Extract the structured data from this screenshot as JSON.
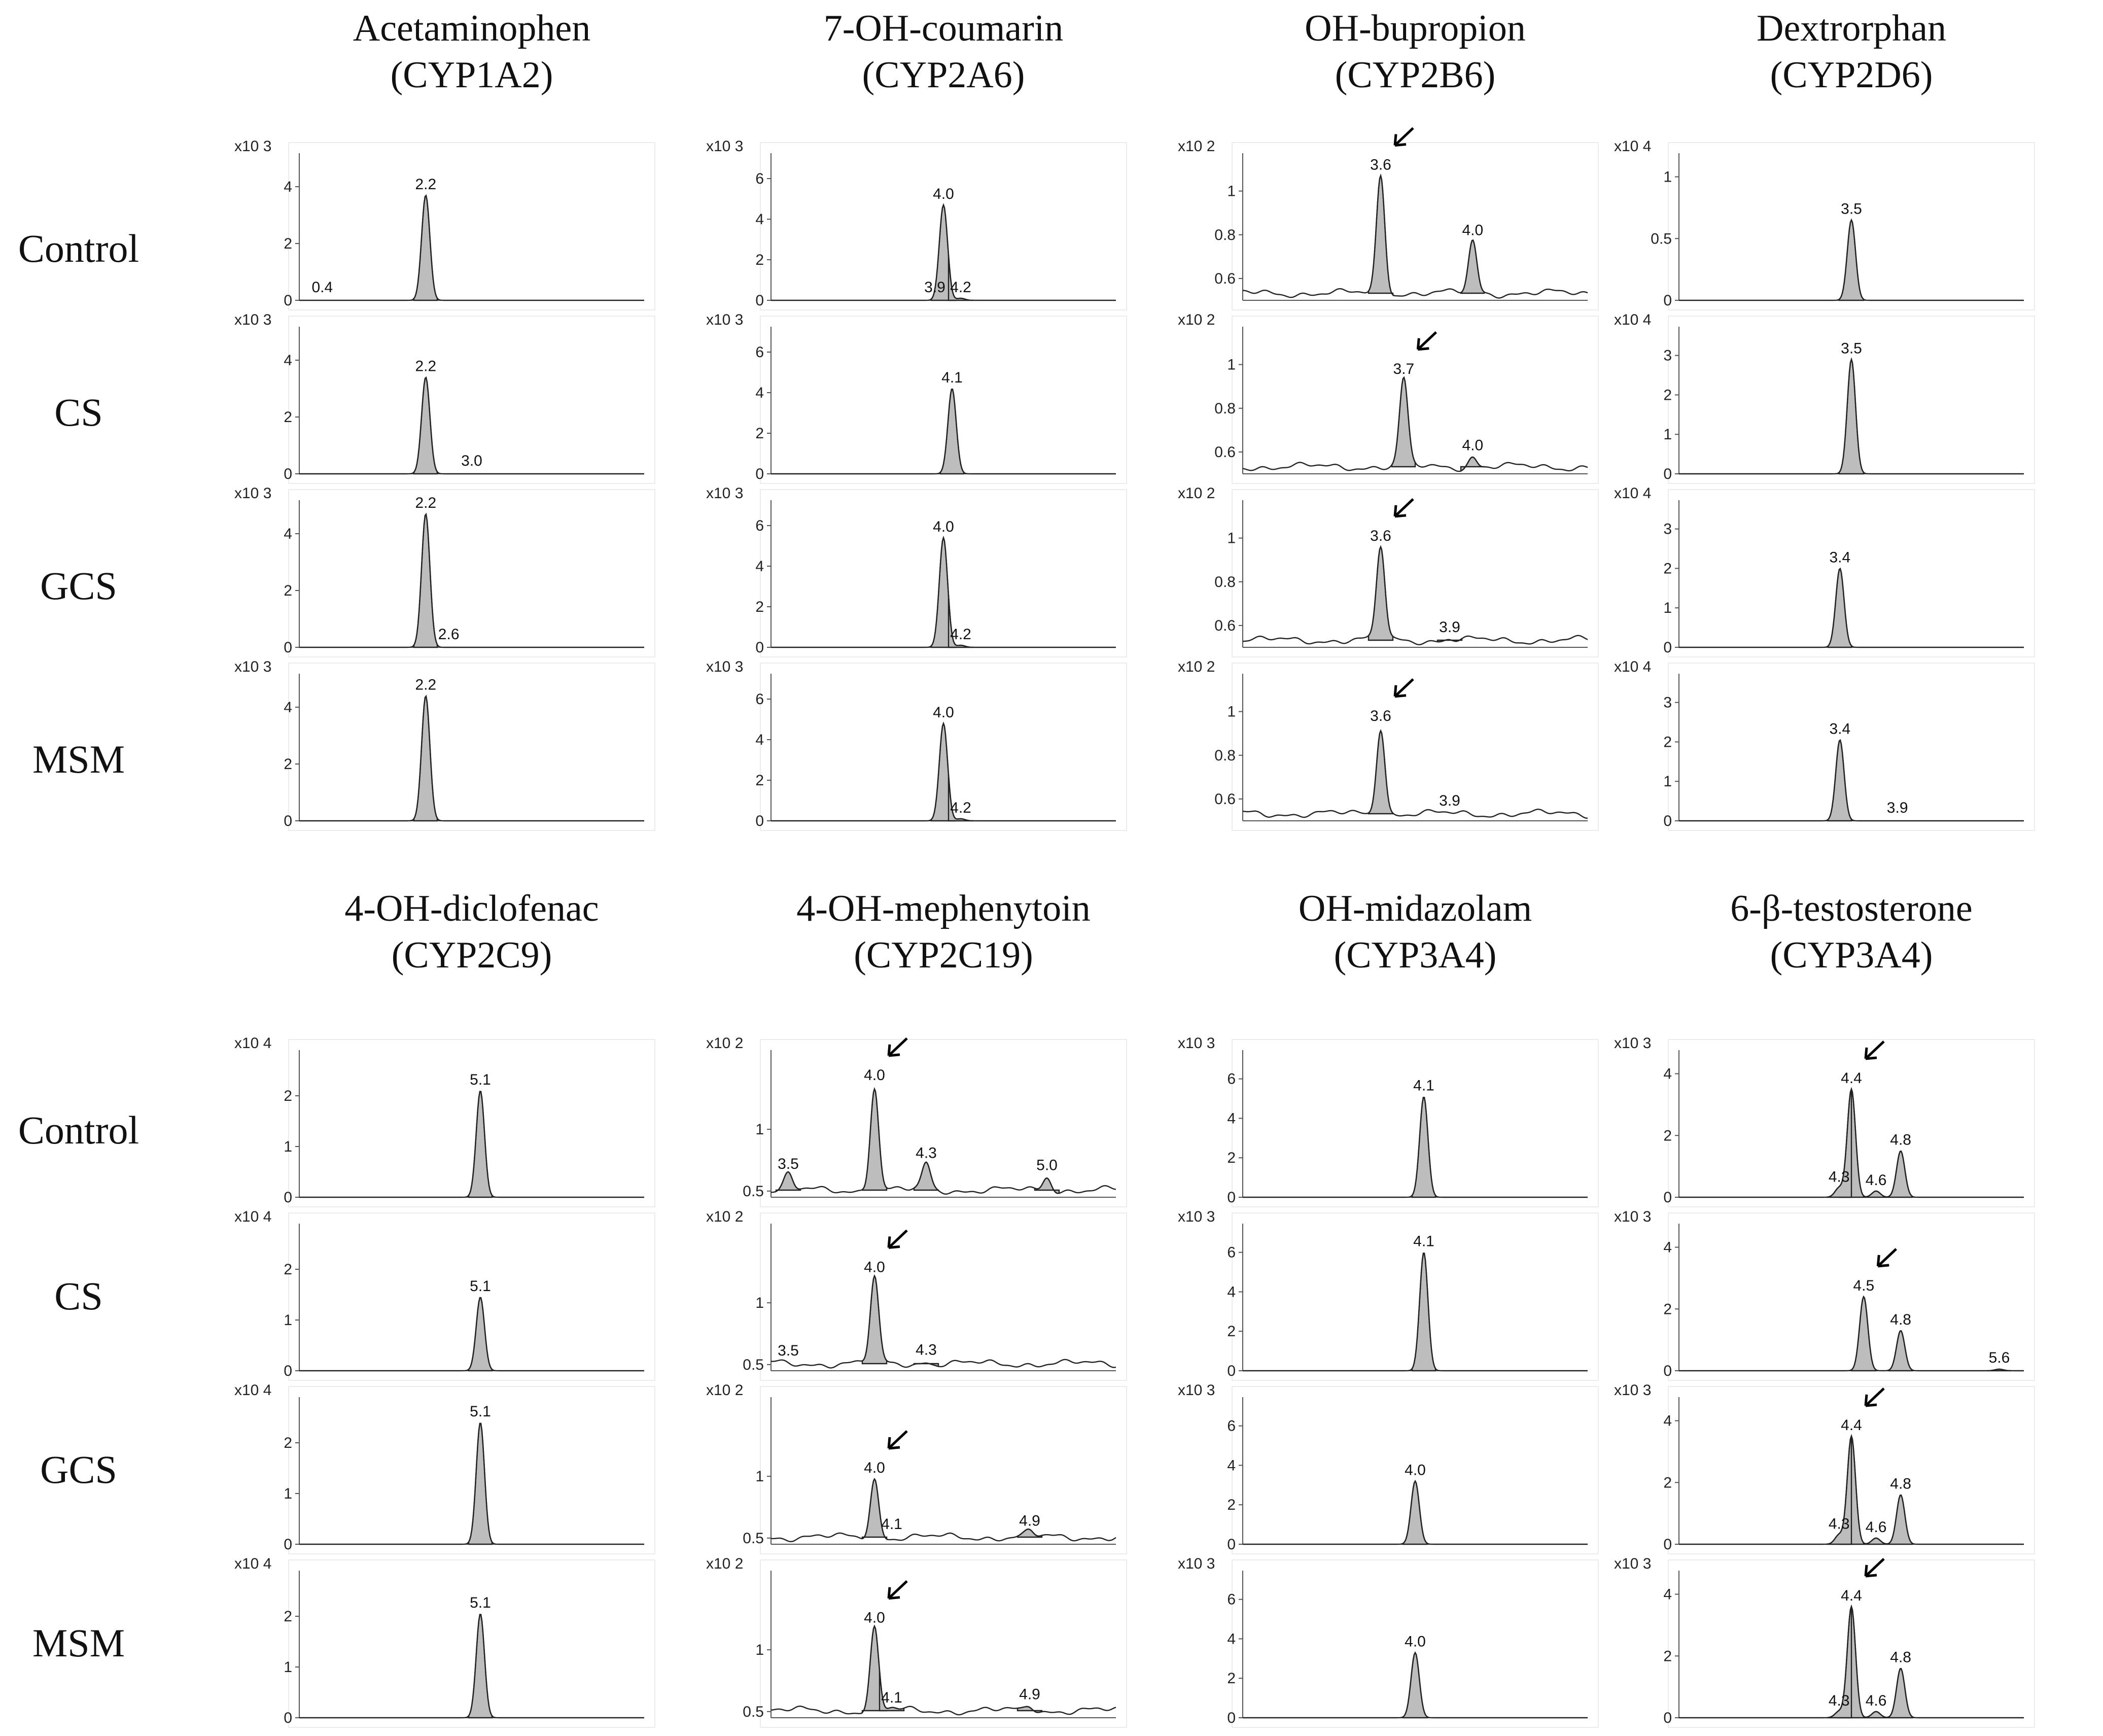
{
  "figure": {
    "row_labels": [
      "Control",
      "CS",
      "GCS",
      "MSM"
    ],
    "colors": {
      "peak_fill": "#bdbdbd",
      "line": "#222222",
      "arrow": "#000000"
    }
  },
  "chart_data": [
    {
      "type": "line",
      "metabolite": "Acetaminophen",
      "enzyme": "(CYP1A2)",
      "scale": "x10 3",
      "ylim": [
        0,
        5
      ],
      "yticks": [
        "0",
        "2",
        "4"
      ],
      "ytick_values": [
        0,
        2,
        4
      ],
      "xlim": [
        0,
        6
      ],
      "noise": false,
      "rows": [
        {
          "group": "Control",
          "peaks": [
            {
              "rt": 2.2,
              "h": 3.7,
              "label": "2.2"
            },
            {
              "rt": 0.4,
              "h": 0.05,
              "label": "0.4"
            }
          ]
        },
        {
          "group": "CS",
          "peaks": [
            {
              "rt": 2.2,
              "h": 3.4,
              "label": "2.2"
            },
            {
              "rt": 3.0,
              "h": 0.05,
              "label": "3.0"
            }
          ]
        },
        {
          "group": "GCS",
          "peaks": [
            {
              "rt": 2.2,
              "h": 4.7,
              "label": "2.2"
            },
            {
              "rt": 2.6,
              "h": 0.05,
              "label": "2.6"
            }
          ]
        },
        {
          "group": "MSM",
          "peaks": [
            {
              "rt": 2.2,
              "h": 4.4,
              "label": "2.2"
            }
          ]
        }
      ]
    },
    {
      "type": "line",
      "metabolite": "7-OH-coumarin",
      "enzyme": "(CYP2A6)",
      "scale": "x10 3",
      "ylim": [
        0,
        7
      ],
      "yticks": [
        "0",
        "2",
        "4",
        "6"
      ],
      "ytick_values": [
        0,
        2,
        4,
        6
      ],
      "xlim": [
        2,
        6
      ],
      "noise": false,
      "rows": [
        {
          "group": "Control",
          "peaks": [
            {
              "rt": 4.0,
              "h": 4.7,
              "label": "4.0"
            },
            {
              "rt": 3.9,
              "h": 0.05,
              "label": "3.9"
            },
            {
              "rt": 4.2,
              "h": 0.1,
              "label": "4.2"
            }
          ]
        },
        {
          "group": "CS",
          "peaks": [
            {
              "rt": 4.1,
              "h": 4.2,
              "label": "4.1"
            }
          ]
        },
        {
          "group": "GCS",
          "peaks": [
            {
              "rt": 4.0,
              "h": 5.4,
              "label": "4.0"
            },
            {
              "rt": 4.2,
              "h": 0.1,
              "label": "4.2"
            }
          ]
        },
        {
          "group": "MSM",
          "peaks": [
            {
              "rt": 4.0,
              "h": 4.8,
              "label": "4.0"
            },
            {
              "rt": 4.2,
              "h": 0.1,
              "label": "4.2"
            }
          ]
        }
      ]
    },
    {
      "type": "line",
      "metabolite": "OH-bupropion",
      "enzyme": "(CYP2B6)",
      "scale": "x10 2",
      "ylim": [
        0.5,
        1.15
      ],
      "yticks": [
        "0.6",
        "0.8",
        "1"
      ],
      "ytick_values": [
        0.6,
        0.8,
        1.0
      ],
      "xlim": [
        3.0,
        4.5
      ],
      "noise": true,
      "rows": [
        {
          "group": "Control",
          "arrow": true,
          "peaks": [
            {
              "rt": 3.6,
              "h": 1.07,
              "label": "3.6"
            },
            {
              "rt": 4.0,
              "h": 0.77,
              "label": "4.0"
            }
          ]
        },
        {
          "group": "CS",
          "arrow": true,
          "peaks": [
            {
              "rt": 3.7,
              "h": 0.93,
              "label": "3.7"
            },
            {
              "rt": 4.0,
              "h": 0.58,
              "label": "4.0"
            }
          ]
        },
        {
          "group": "GCS",
          "arrow": true,
          "peaks": [
            {
              "rt": 3.6,
              "h": 0.96,
              "label": "3.6"
            },
            {
              "rt": 3.9,
              "h": 0.54,
              "label": "3.9"
            }
          ]
        },
        {
          "group": "MSM",
          "arrow": true,
          "peaks": [
            {
              "rt": 3.6,
              "h": 0.93,
              "label": "3.6"
            },
            {
              "rt": 3.9,
              "h": 0.51,
              "label": "3.9"
            }
          ]
        }
      ]
    },
    {
      "type": "line",
      "metabolite": "Dextrorphan",
      "enzyme": "(CYP2D6)",
      "scale": "x10 4",
      "ylim": [
        0,
        1.15
      ],
      "yticks": [
        "0",
        "0.5",
        "1"
      ],
      "ytick_values": [
        0,
        0.5,
        1.0
      ],
      "xlim": [
        2,
        5
      ],
      "noise": false,
      "rows": [
        {
          "group": "Control",
          "peaks": [
            {
              "rt": 3.5,
              "h": 0.65,
              "label": "3.5"
            }
          ]
        },
        {
          "group": "CS",
          "peaks": [
            {
              "rt": 3.5,
              "h": 2.9,
              "label": "3.5"
            }
          ]
        },
        {
          "group": "GCS",
          "peaks": [
            {
              "rt": 3.4,
              "h": 2.0,
              "label": "3.4"
            }
          ]
        },
        {
          "group": "MSM",
          "peaks": [
            {
              "rt": 3.4,
              "h": 2.05,
              "label": "3.4"
            },
            {
              "rt": 3.9,
              "h": 0.02,
              "label": "3.9"
            }
          ]
        }
      ],
      "row_ylim": [
        [
          0,
          1.15
        ],
        [
          0,
          3.6
        ],
        [
          0,
          3.6
        ],
        [
          0,
          3.6
        ]
      ],
      "row_yticks": [
        [
          "0",
          "0.5",
          "1"
        ],
        [
          "0",
          "1",
          "2",
          "3"
        ],
        [
          "0",
          "1",
          "2",
          "3"
        ],
        [
          "0",
          "1",
          "2",
          "3"
        ]
      ],
      "row_ytick_values": [
        [
          0,
          0.5,
          1.0
        ],
        [
          0,
          1,
          2,
          3
        ],
        [
          0,
          1,
          2,
          3
        ],
        [
          0,
          1,
          2,
          3
        ]
      ]
    },
    {
      "type": "line",
      "metabolite": "4-OH-diclofenac",
      "enzyme": "(CYP2C9)",
      "scale": "x10 4",
      "ylim": [
        0,
        2.8
      ],
      "yticks": [
        "0",
        "1",
        "2"
      ],
      "ytick_values": [
        0,
        1,
        2
      ],
      "xlim": [
        3,
        7
      ],
      "noise": false,
      "rows": [
        {
          "group": "Control",
          "peaks": [
            {
              "rt": 5.1,
              "h": 2.1,
              "label": "5.1"
            }
          ]
        },
        {
          "group": "CS",
          "peaks": [
            {
              "rt": 5.1,
              "h": 1.45,
              "label": "5.1"
            }
          ]
        },
        {
          "group": "GCS",
          "peaks": [
            {
              "rt": 5.1,
              "h": 2.4,
              "label": "5.1"
            }
          ]
        },
        {
          "group": "MSM",
          "peaks": [
            {
              "rt": 5.1,
              "h": 2.05,
              "label": "5.1"
            }
          ]
        }
      ]
    },
    {
      "type": "line",
      "metabolite": "4-OH-mephenytoin",
      "enzyme": "(CYP2C19)",
      "scale": "x10 2",
      "ylim": [
        0.45,
        1.6
      ],
      "yticks": [
        "0.5",
        "1"
      ],
      "ytick_values": [
        0.5,
        1.0
      ],
      "xlim": [
        3.4,
        5.4
      ],
      "noise": true,
      "rows": [
        {
          "group": "Control",
          "arrow": true,
          "peaks": [
            {
              "rt": 4.0,
              "h": 1.35,
              "label": "4.0"
            },
            {
              "rt": 3.5,
              "h": 0.63,
              "label": "3.5"
            },
            {
              "rt": 4.3,
              "h": 0.72,
              "label": "4.3"
            },
            {
              "rt": 5.0,
              "h": 0.62,
              "label": "5.0"
            }
          ]
        },
        {
          "group": "CS",
          "arrow": true,
          "peaks": [
            {
              "rt": 4.0,
              "h": 1.2,
              "label": "4.0"
            },
            {
              "rt": 3.5,
              "h": 0.5,
              "label": "3.5"
            },
            {
              "rt": 4.3,
              "h": 0.53,
              "label": "4.3"
            }
          ]
        },
        {
          "group": "GCS",
          "arrow": true,
          "peaks": [
            {
              "rt": 4.0,
              "h": 0.98,
              "label": "4.0"
            },
            {
              "rt": 4.1,
              "h": 0.49,
              "label": "4.1"
            },
            {
              "rt": 4.9,
              "h": 0.55,
              "label": "4.9"
            }
          ]
        },
        {
          "group": "MSM",
          "arrow": true,
          "peaks": [
            {
              "rt": 4.0,
              "h": 1.17,
              "label": "4.0"
            },
            {
              "rt": 4.1,
              "h": 0.52,
              "label": "4.1"
            },
            {
              "rt": 4.9,
              "h": 0.55,
              "label": "4.9"
            }
          ]
        }
      ]
    },
    {
      "type": "line",
      "metabolite": "OH-midazolam",
      "enzyme": "(CYP3A4)",
      "scale": "x10 3",
      "ylim": [
        0,
        7.2
      ],
      "yticks": [
        "0",
        "2",
        "4",
        "6"
      ],
      "ytick_values": [
        0,
        2,
        4,
        6
      ],
      "xlim": [
        2,
        6
      ],
      "noise": false,
      "rows": [
        {
          "group": "Control",
          "peaks": [
            {
              "rt": 4.1,
              "h": 5.1,
              "label": "4.1"
            }
          ]
        },
        {
          "group": "CS",
          "peaks": [
            {
              "rt": 4.1,
              "h": 6.0,
              "label": "4.1"
            }
          ]
        },
        {
          "group": "GCS",
          "peaks": [
            {
              "rt": 4.0,
              "h": 3.2,
              "label": "4.0"
            }
          ]
        },
        {
          "group": "MSM",
          "peaks": [
            {
              "rt": 4.0,
              "h": 3.3,
              "label": "4.0"
            }
          ]
        }
      ]
    },
    {
      "type": "line",
      "metabolite": "6-β-testosterone",
      "enzyme": "(CYP3A4)",
      "scale": "x10 3",
      "ylim": [
        0,
        4.6
      ],
      "yticks": [
        "0",
        "2",
        "4"
      ],
      "ytick_values": [
        0,
        2,
        4
      ],
      "xlim": [
        3.0,
        5.8
      ],
      "noise": false,
      "rows": [
        {
          "group": "Control",
          "arrow": true,
          "peaks": [
            {
              "rt": 4.4,
              "h": 3.5,
              "label": "4.4"
            },
            {
              "rt": 4.3,
              "h": 0.3,
              "label": "4.3"
            },
            {
              "rt": 4.6,
              "h": 0.2,
              "label": "4.6"
            },
            {
              "rt": 4.8,
              "h": 1.5,
              "label": "4.8"
            }
          ]
        },
        {
          "group": "CS",
          "arrow": true,
          "peaks": [
            {
              "rt": 4.5,
              "h": 2.4,
              "label": "4.5"
            },
            {
              "rt": 4.8,
              "h": 1.3,
              "label": "4.8"
            },
            {
              "rt": 5.6,
              "h": 0.05,
              "label": "5.6"
            }
          ]
        },
        {
          "group": "GCS",
          "arrow": true,
          "peaks": [
            {
              "rt": 4.4,
              "h": 3.5,
              "label": "4.4"
            },
            {
              "rt": 4.3,
              "h": 0.3,
              "label": "4.3"
            },
            {
              "rt": 4.6,
              "h": 0.2,
              "label": "4.6"
            },
            {
              "rt": 4.8,
              "h": 1.6,
              "label": "4.8"
            }
          ]
        },
        {
          "group": "MSM",
          "arrow": true,
          "peaks": [
            {
              "rt": 4.4,
              "h": 3.6,
              "label": "4.4"
            },
            {
              "rt": 4.3,
              "h": 0.2,
              "label": "4.3"
            },
            {
              "rt": 4.6,
              "h": 0.2,
              "label": "4.6"
            },
            {
              "rt": 4.8,
              "h": 1.6,
              "label": "4.8"
            }
          ]
        }
      ]
    }
  ]
}
